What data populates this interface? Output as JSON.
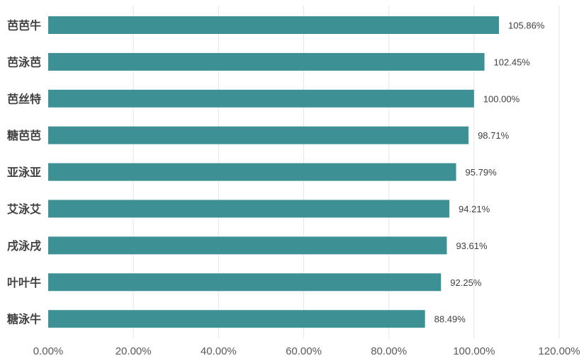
{
  "chart_data": {
    "type": "bar",
    "orientation": "horizontal",
    "categories": [
      "芭芭牛",
      "芭泳芭",
      "芭丝特",
      "糖芭芭",
      "亚泳亚",
      "艾泳艾",
      "戌泳戌",
      "叶叶牛",
      "糖泳牛"
    ],
    "values": [
      105.86,
      102.45,
      100.0,
      98.71,
      95.79,
      94.21,
      93.61,
      92.25,
      88.49
    ],
    "value_labels": [
      "105.86%",
      "102.45%",
      "100.00%",
      "98.71%",
      "95.79%",
      "94.21%",
      "93.61%",
      "92.25%",
      "88.49%"
    ],
    "x_ticks": [
      0,
      20,
      40,
      60,
      80,
      100,
      120
    ],
    "x_tick_labels": [
      "0.00%",
      "20.00%",
      "40.00%",
      "60.00%",
      "80.00%",
      "100.00%",
      "120.00%"
    ],
    "xlim": [
      0,
      120
    ],
    "grid": "vertical",
    "legend": "none",
    "bar_color": "#3d9195"
  }
}
